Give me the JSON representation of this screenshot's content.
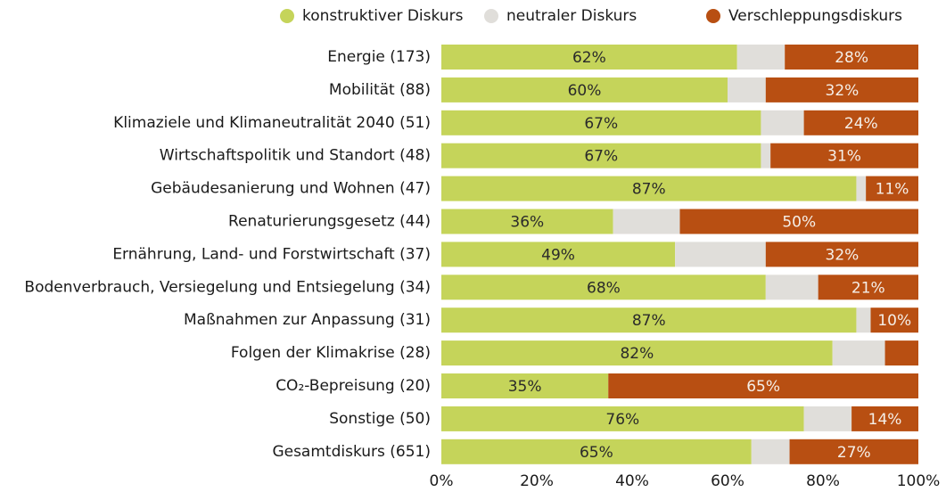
{
  "chart_data": {
    "type": "stacked_bar_horizontal",
    "categories": [
      "Energie (173)",
      "Mobilität (88)",
      "Klimaziele und Klimaneutralität 2040 (51)",
      "Wirtschaftspolitik und Standort (48)",
      "Gebäudesanierung und Wohnen (47)",
      "Renaturierungsgesetz (44)",
      "Ernährung, Land- und Forstwirtschaft (37)",
      "Bodenverbrauch, Versiegelung und Entsiegelung (34)",
      "Maßnahmen zur Anpassung (31)",
      "Folgen der Klimakrise (28)",
      "CO₂-Bepreisung (20)",
      "Sonstige (50)",
      "Gesamtdiskurs (651)"
    ],
    "series": [
      {
        "name": "konstruktiver Diskurs",
        "color": "#c5d45a",
        "label_color": "#2a2a2a",
        "values": [
          62,
          60,
          67,
          67,
          87,
          36,
          49,
          68,
          87,
          82,
          35,
          76,
          65
        ],
        "value_labels": [
          "62%",
          "60%",
          "67%",
          "67%",
          "87%",
          "36%",
          "49%",
          "68%",
          "87%",
          "82%",
          "35%",
          "76%",
          "65%"
        ]
      },
      {
        "name": "neutraler Diskurs",
        "color": "#e0deda",
        "values": [
          10,
          8,
          9,
          2,
          2,
          14,
          19,
          11,
          3,
          11,
          0,
          10,
          8
        ]
      },
      {
        "name": "Verschleppungsdiskurs",
        "color": "#b84f12",
        "label_color": "#f5efe8",
        "values": [
          28,
          32,
          24,
          31,
          11,
          50,
          32,
          21,
          10,
          7,
          65,
          14,
          27
        ],
        "value_labels": [
          "28%",
          "32%",
          "24%",
          "31%",
          "11%",
          "50%",
          "32%",
          "21%",
          "10%",
          null,
          "65%",
          "14%",
          "27%"
        ]
      }
    ],
    "xlim": [
      0,
      100
    ],
    "xticks": [
      {
        "value": 0,
        "label": "0%"
      },
      {
        "value": 20,
        "label": "20%"
      },
      {
        "value": 40,
        "label": "40%"
      },
      {
        "value": 60,
        "label": "60%"
      },
      {
        "value": 80,
        "label": "80%"
      },
      {
        "value": 100,
        "label": "100%"
      }
    ],
    "legend": "top"
  }
}
